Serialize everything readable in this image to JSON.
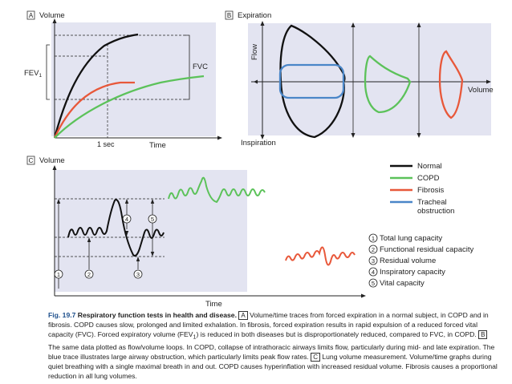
{
  "panel_a": {
    "letter": "A",
    "y_label": "Volume",
    "fev1_label": "FEV",
    "fev1_sub": "1",
    "fvc_label": "FVC",
    "x_tick": "1 sec",
    "x_label": "Time"
  },
  "panel_b": {
    "letter": "B",
    "top_label": "Expiration",
    "bottom_label": "Inspiration",
    "y_label": "Flow",
    "x_label": "Volume"
  },
  "panel_c": {
    "letter": "C",
    "y_label": "Volume",
    "x_label": "Time",
    "markers": [
      "1",
      "2",
      "3",
      "4",
      "5"
    ]
  },
  "legend": {
    "items": [
      {
        "label": "Normal",
        "color": "#111111"
      },
      {
        "label": "COPD",
        "color": "#5cc25a"
      },
      {
        "label": "Fibrosis",
        "color": "#e8583a"
      },
      {
        "label": "Tracheal",
        "label2": "obstruction",
        "color": "#4a86c8"
      }
    ]
  },
  "volumes": [
    {
      "num": "1",
      "text": "Total lung capacity"
    },
    {
      "num": "2",
      "text": "Functional residual capacity"
    },
    {
      "num": "3",
      "text": "Residual volume"
    },
    {
      "num": "4",
      "text": "Inspiratory capacity"
    },
    {
      "num": "5",
      "text": "Vital capacity"
    }
  ],
  "caption": {
    "fig_no": "Fig. 19.7",
    "title": "Respiratory function tests in health and disease.",
    "box_a": "A",
    "part1": "Volume/time traces from forced expiration in a normal subject, in COPD and in fibrosis. COPD causes slow, prolonged and limited exhalation. In fibrosis, forced expiration results in rapid expulsion of a reduced forced vital capacity (FVC). Forced expiratory volume (FEV",
    "sub1": "1",
    "part2": ") is reduced in both diseases but is disproportionately reduced, compared to FVC, in COPD.",
    "box_b": "B",
    "part3": "The same data plotted as flow/volume loops. In COPD, collapse of intrathoracic airways limits flow, particularly during mid- and late expiration. The blue trace illustrates large airway obstruction, which particularly limits peak flow rates.",
    "box_c": "C",
    "part4": "Lung volume measurement. Volume/time graphs during quiet breathing with a single maximal breath in and out. COPD causes hyperinflation with increased residual volume. Fibrosis causes a proportional reduction in all lung volumes."
  }
}
